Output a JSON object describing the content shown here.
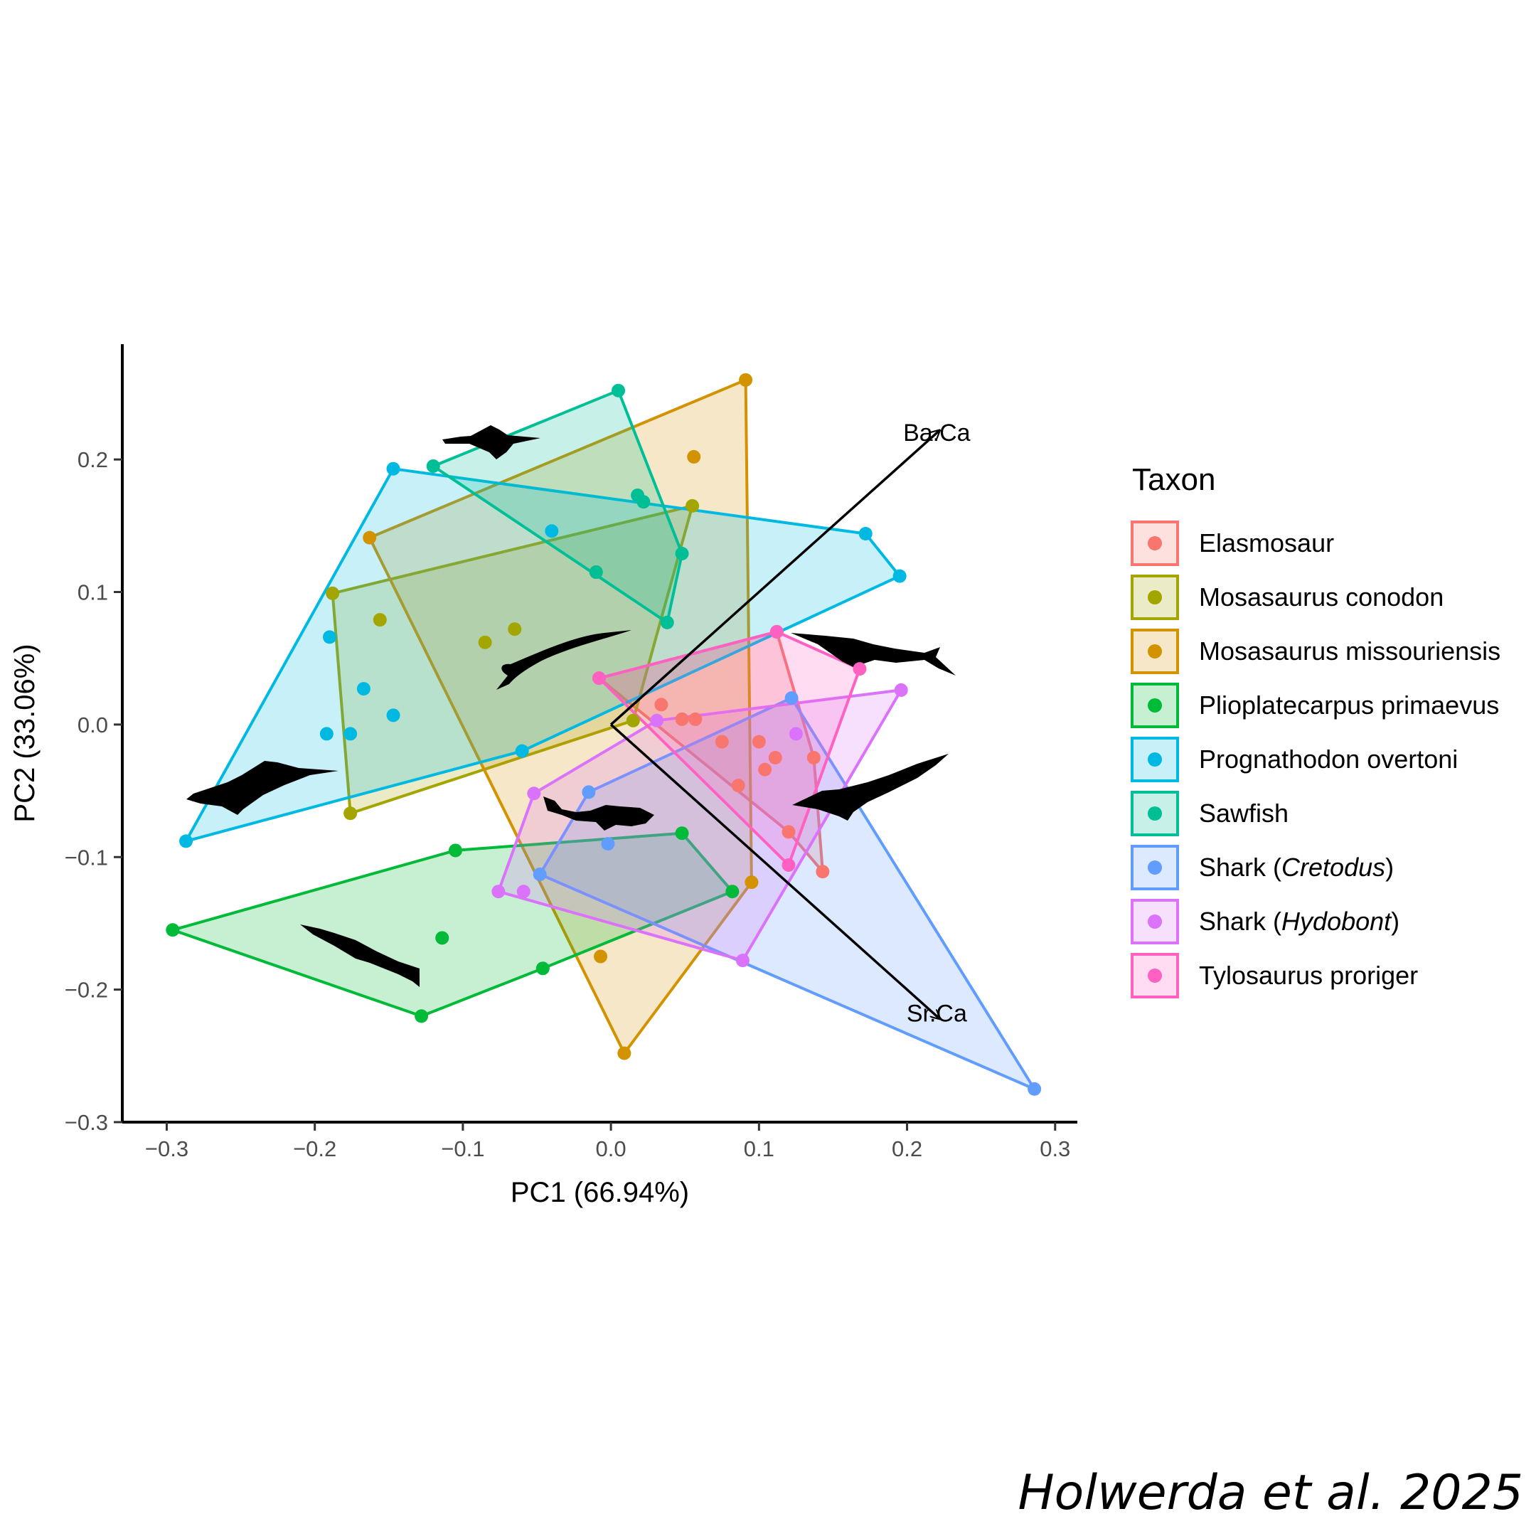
{
  "chart_data": {
    "type": "scatter",
    "subtype": "PCA biplot with convex hulls per group",
    "xlabel": "PC1 (66.94%)",
    "ylabel": "PC2 (33.06%)",
    "xlim": [
      -0.33,
      0.315
    ],
    "ylim": [
      -0.3,
      0.287
    ],
    "xticks": [
      -0.3,
      -0.2,
      -0.1,
      0.0,
      0.1,
      0.2,
      0.3
    ],
    "xtick_labels": [
      "−0.3",
      "−0.2",
      "−0.1",
      "0.0",
      "0.1",
      "0.2",
      "0.3"
    ],
    "yticks": [
      -0.3,
      -0.2,
      -0.1,
      0.0,
      0.1,
      0.2
    ],
    "ytick_labels": [
      "−0.3",
      "−0.2",
      "−0.1",
      "0.0",
      "0.1",
      "0.2"
    ],
    "grid": false,
    "legend_position": "right",
    "legend_title": "Taxon",
    "loadings": [
      {
        "label": "Ba.Ca",
        "x": 0.222,
        "y": 0.222
      },
      {
        "label": "Sr.Ca",
        "x": 0.222,
        "y": -0.222
      }
    ],
    "series": [
      {
        "name": "Elasmosaur",
        "italic": true,
        "color": "#F8766D",
        "points": [
          [
            -0.008,
            0.035
          ],
          [
            0.034,
            0.015
          ],
          [
            0.048,
            0.004
          ],
          [
            0.057,
            0.004
          ],
          [
            0.075,
            -0.013
          ],
          [
            0.086,
            -0.046
          ],
          [
            0.1,
            -0.013
          ],
          [
            0.104,
            -0.034
          ],
          [
            0.111,
            -0.025
          ],
          [
            0.137,
            -0.025
          ],
          [
            0.143,
            -0.111
          ],
          [
            0.12,
            -0.081
          ],
          [
            0.112,
            0.07
          ]
        ],
        "hull": [
          [
            -0.008,
            0.035
          ],
          [
            0.112,
            0.07
          ],
          [
            0.137,
            -0.025
          ],
          [
            0.143,
            -0.111
          ],
          [
            0.12,
            -0.081
          ]
        ]
      },
      {
        "name": "Mosasaurus conodon",
        "italic": true,
        "color": "#A3A500",
        "points": [
          [
            -0.188,
            0.099
          ],
          [
            -0.156,
            0.079
          ],
          [
            -0.176,
            -0.067
          ],
          [
            -0.085,
            0.062
          ],
          [
            -0.065,
            0.072
          ],
          [
            0.055,
            0.165
          ],
          [
            0.015,
            0.003
          ]
        ],
        "hull": [
          [
            -0.188,
            0.099
          ],
          [
            0.055,
            0.165
          ],
          [
            0.015,
            0.003
          ],
          [
            -0.176,
            -0.067
          ]
        ]
      },
      {
        "name": "Mosasaurus missouriensis",
        "italic": true,
        "color": "#D39200",
        "points": [
          [
            -0.163,
            0.141
          ],
          [
            0.091,
            0.26
          ],
          [
            0.056,
            0.202
          ],
          [
            -0.01,
            0.115
          ],
          [
            0.095,
            -0.119
          ],
          [
            -0.007,
            -0.175
          ],
          [
            0.009,
            -0.248
          ]
        ],
        "hull": [
          [
            -0.163,
            0.141
          ],
          [
            0.091,
            0.26
          ],
          [
            0.095,
            -0.119
          ],
          [
            0.009,
            -0.248
          ]
        ]
      },
      {
        "name": "Plioplatecarpus primaevus",
        "italic": true,
        "color": "#00BA38",
        "points": [
          [
            -0.296,
            -0.155
          ],
          [
            -0.105,
            -0.095
          ],
          [
            0.048,
            -0.082
          ],
          [
            0.082,
            -0.126
          ],
          [
            -0.046,
            -0.184
          ],
          [
            -0.128,
            -0.22
          ],
          [
            -0.114,
            -0.161
          ]
        ],
        "hull": [
          [
            -0.296,
            -0.155
          ],
          [
            -0.105,
            -0.095
          ],
          [
            0.048,
            -0.082
          ],
          [
            0.082,
            -0.126
          ],
          [
            -0.046,
            -0.184
          ],
          [
            -0.128,
            -0.22
          ]
        ]
      },
      {
        "name": "Prognathodon overtoni",
        "italic": true,
        "color": "#00B9E3",
        "points": [
          [
            -0.147,
            0.193
          ],
          [
            0.172,
            0.144
          ],
          [
            0.195,
            0.112
          ],
          [
            -0.287,
            -0.088
          ],
          [
            -0.19,
            0.066
          ],
          [
            -0.167,
            0.027
          ],
          [
            -0.147,
            0.007
          ],
          [
            -0.176,
            -0.007
          ],
          [
            -0.192,
            -0.007
          ],
          [
            -0.04,
            0.146
          ],
          [
            -0.06,
            -0.02
          ]
        ],
        "hull": [
          [
            -0.147,
            0.193
          ],
          [
            0.172,
            0.144
          ],
          [
            0.195,
            0.112
          ],
          [
            -0.06,
            -0.02
          ],
          [
            -0.287,
            -0.088
          ]
        ]
      },
      {
        "name": "Sawfish",
        "italic": false,
        "color": "#00BF96",
        "points": [
          [
            0.005,
            0.252
          ],
          [
            -0.12,
            0.195
          ],
          [
            0.018,
            0.173
          ],
          [
            0.022,
            0.168
          ],
          [
            0.048,
            0.129
          ],
          [
            -0.01,
            0.115
          ],
          [
            0.038,
            0.077
          ]
        ],
        "hull": [
          [
            -0.12,
            0.195
          ],
          [
            0.005,
            0.252
          ],
          [
            0.048,
            0.129
          ],
          [
            0.038,
            0.077
          ]
        ]
      },
      {
        "name": "Shark (Cretodus)",
        "italic": false,
        "italic_part": "Cretodus",
        "prefix": "Shark (",
        "suffix": ")",
        "color": "#619CFF",
        "points": [
          [
            0.122,
            0.02
          ],
          [
            0.286,
            -0.275
          ],
          [
            -0.015,
            -0.051
          ],
          [
            -0.002,
            -0.09
          ],
          [
            -0.048,
            -0.113
          ]
        ],
        "hull": [
          [
            0.122,
            0.02
          ],
          [
            0.286,
            -0.275
          ],
          [
            -0.048,
            -0.113
          ],
          [
            -0.015,
            -0.051
          ]
        ]
      },
      {
        "name": "Shark (Hydobont)",
        "italic": false,
        "italic_part": "Hydobont",
        "prefix": "Shark (",
        "suffix": ")",
        "color": "#DB72FB",
        "points": [
          [
            0.196,
            0.026
          ],
          [
            0.089,
            -0.178
          ],
          [
            -0.076,
            -0.126
          ],
          [
            -0.059,
            -0.126
          ],
          [
            -0.052,
            -0.052
          ],
          [
            0.125,
            -0.007
          ],
          [
            0.031,
            0.003
          ]
        ],
        "hull": [
          [
            0.031,
            0.003
          ],
          [
            0.196,
            0.026
          ],
          [
            0.089,
            -0.178
          ],
          [
            -0.076,
            -0.126
          ],
          [
            -0.052,
            -0.052
          ]
        ]
      },
      {
        "name": "Tylosaurus proriger",
        "italic": true,
        "color": "#FF61C3",
        "points": [
          [
            0.168,
            0.042
          ],
          [
            0.112,
            0.07
          ],
          [
            -0.008,
            0.035
          ],
          [
            0.12,
            -0.106
          ]
        ],
        "hull": [
          [
            -0.008,
            0.035
          ],
          [
            0.112,
            0.07
          ],
          [
            0.168,
            0.042
          ],
          [
            0.12,
            -0.106
          ]
        ]
      }
    ]
  },
  "credit": "Holwerda et al. 2025"
}
